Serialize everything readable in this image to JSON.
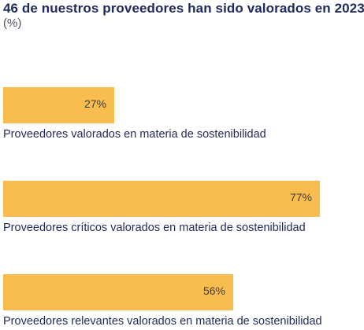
{
  "colors": {
    "bar": "#f9bd4f",
    "text": "#1f2a5c",
    "value_text": "#3d3d3d"
  },
  "chart_data": {
    "type": "bar",
    "orientation": "horizontal",
    "title": "46 de nuestros proveedores han sido valorados en 2023",
    "unit_label": "(%)",
    "xlim": [
      0,
      100
    ],
    "grid": false,
    "categories": [
      "Proveedores valorados en materia de sostenibilidad",
      "Proveedores críticos valorados en materia de sostenibilidad",
      "Proveedores relevantes valorados en materia de sostenibilidad"
    ],
    "values": [
      27,
      77,
      56
    ],
    "value_labels": [
      "27%",
      "77%",
      "56%"
    ]
  }
}
